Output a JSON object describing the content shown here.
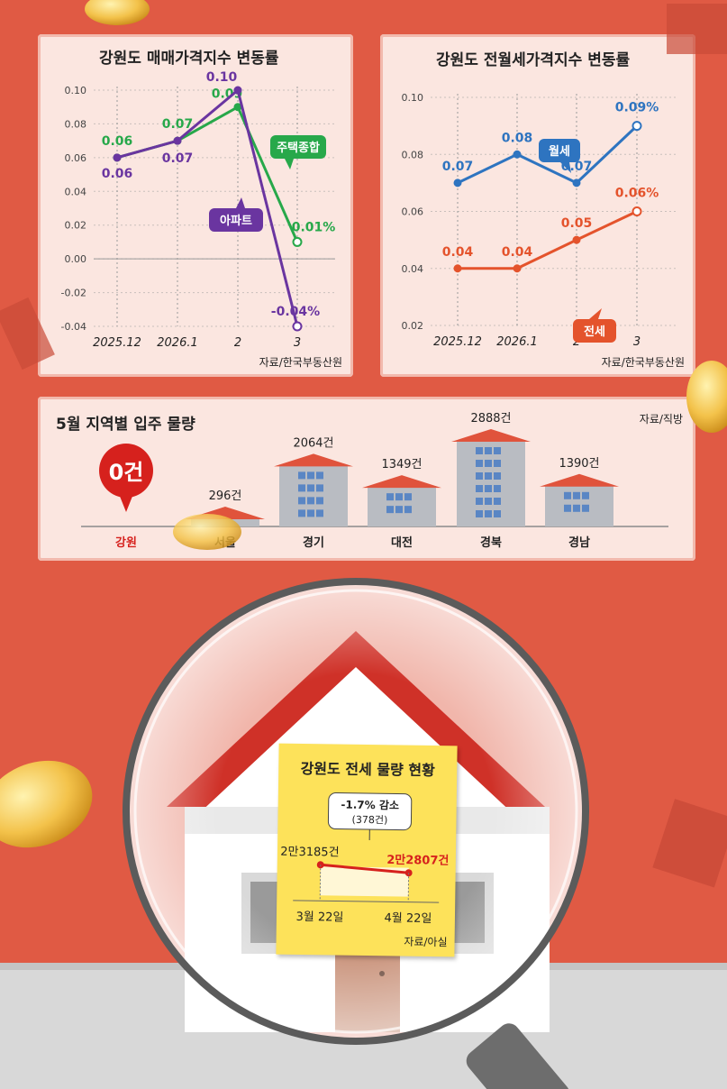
{
  "chart_data": [
    {
      "type": "line",
      "title": "강원도 매매가격지수 변동률",
      "categories": [
        "2025.12",
        "2026.1",
        "2",
        "3"
      ],
      "ylim": [
        -0.04,
        0.1
      ],
      "yticks": [
        "0.10",
        "0.08",
        "0.06",
        "0.04",
        "0.02",
        "0.00",
        "-0.02",
        "-0.04"
      ],
      "series": [
        {
          "name": "주택종합",
          "color": "#27a84a",
          "values": [
            0.06,
            0.07,
            0.09,
            0.01
          ],
          "labels": [
            "0.06",
            "0.07",
            "0.09",
            "0.01%"
          ]
        },
        {
          "name": "아파트",
          "color": "#6a35a0",
          "values": [
            0.06,
            0.07,
            0.1,
            -0.04
          ],
          "labels": [
            "0.06",
            "0.07",
            "0.10",
            "-0.04%"
          ]
        }
      ],
      "source": "자료/한국부동산원"
    },
    {
      "type": "line",
      "title": "강원도 전월세가격지수 변동률",
      "categories": [
        "2025.12",
        "2026.1",
        "2",
        "3"
      ],
      "ylim": [
        0.02,
        0.1
      ],
      "yticks": [
        "0.10",
        "0.08",
        "0.06",
        "0.04",
        "0.02"
      ],
      "series": [
        {
          "name": "월세",
          "color": "#2e74c0",
          "values": [
            0.07,
            0.08,
            0.07,
            0.09
          ],
          "labels": [
            "0.07",
            "0.08",
            "0.07",
            "0.09%"
          ]
        },
        {
          "name": "전세",
          "color": "#e4532c",
          "values": [
            0.04,
            0.04,
            0.05,
            0.06
          ],
          "labels": [
            "0.04",
            "0.04",
            "0.05",
            "0.06%"
          ]
        }
      ],
      "source": "자료/한국부동산원"
    },
    {
      "type": "bar",
      "title": "5월 지역별 입주 물량",
      "categories": [
        "강원",
        "서울",
        "경기",
        "대전",
        "경북",
        "경남"
      ],
      "values": [
        0,
        296,
        2064,
        1349,
        2888,
        1390
      ],
      "labels": [
        "0건",
        "296건",
        "2064건",
        "1349건",
        "2888건",
        "1390건"
      ],
      "source": "자료/직방"
    },
    {
      "type": "line",
      "title": "강원도 전세 물량 현황",
      "categories": [
        "3월 22일",
        "4월 22일"
      ],
      "values": [
        23185,
        22807
      ],
      "labels": [
        "2만3185건",
        "2만2807건"
      ],
      "change": "-1.7% 감소",
      "change_count": "(378건)",
      "source": "자료/아실"
    }
  ]
}
